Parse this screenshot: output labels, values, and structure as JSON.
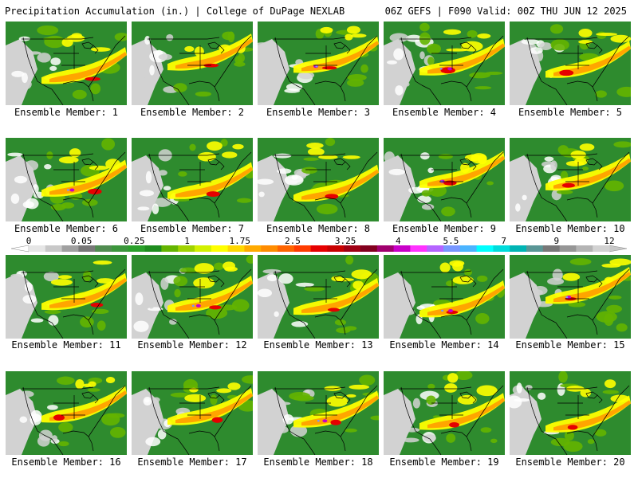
{
  "header": {
    "left": "Precipitation Accumulation (in.) | College of DuPage NEXLAB",
    "right": "06Z GEFS | F090 Valid: 00Z THU JUN 12 2025"
  },
  "panels": [
    {
      "label": "Ensemble Member: 1"
    },
    {
      "label": "Ensemble Member: 2"
    },
    {
      "label": "Ensemble Member: 3"
    },
    {
      "label": "Ensemble Member: 4"
    },
    {
      "label": "Ensemble Member: 5"
    },
    {
      "label": "Ensemble Member: 6"
    },
    {
      "label": "Ensemble Member: 7"
    },
    {
      "label": "Ensemble Member: 8"
    },
    {
      "label": "Ensemble Member: 9"
    },
    {
      "label": "Ensemble Member: 10"
    },
    {
      "label": "Ensemble Member: 11"
    },
    {
      "label": "Ensemble Member: 12"
    },
    {
      "label": "Ensemble Member: 13"
    },
    {
      "label": "Ensemble Member: 14"
    },
    {
      "label": "Ensemble Member: 15"
    },
    {
      "label": "Ensemble Member: 16"
    },
    {
      "label": "Ensemble Member: 17"
    },
    {
      "label": "Ensemble Member: 18"
    },
    {
      "label": "Ensemble Member: 19"
    },
    {
      "label": "Ensemble Member: 20"
    }
  ],
  "colorbar": {
    "tick_labels": [
      "0",
      "0.05",
      "0.25",
      "1",
      "1.75",
      "2.5",
      "3.25",
      "4",
      "5.5",
      "7",
      "9",
      "12"
    ],
    "colors": [
      "#e6e6e6",
      "#c8c8c8",
      "#a0a0a0",
      "#787878",
      "#508c50",
      "#3c963c",
      "#2aa02a",
      "#1e8c1e",
      "#64b400",
      "#a0d200",
      "#d2f000",
      "#ffff00",
      "#ffd700",
      "#ffaa00",
      "#ff8c00",
      "#ff6400",
      "#ff3c00",
      "#e60000",
      "#c80000",
      "#a00014",
      "#82001e",
      "#a0006e",
      "#c800c8",
      "#ff32ff",
      "#b464ff",
      "#7896ff",
      "#4bb4ff",
      "#00ffff",
      "#00dcdc",
      "#00b4b4",
      "#5a9696",
      "#787878",
      "#969696",
      "#b4b4b4",
      "#d2d2d2"
    ]
  },
  "palette": {
    "ground": "#2e8b2e",
    "dry": "#d2d2d2",
    "light": "#ffffff",
    "mid": "#64b400",
    "yellow": "#ffff00",
    "orange": "#ffa500",
    "red": "#e60000",
    "magenta": "#c800c8",
    "blue": "#7896ff",
    "outline": "#000000"
  }
}
